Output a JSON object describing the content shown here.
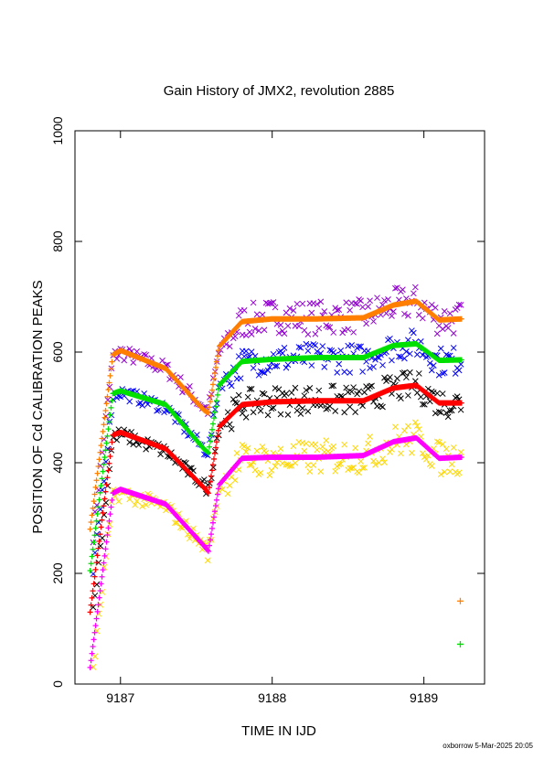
{
  "chart_data": {
    "type": "scatter",
    "title": "Gain History of JMX2, revolution 2885",
    "xlabel": "TIME IN IJD",
    "ylabel": "POSITION OF Cd CALIBRATION PEAKS",
    "xlim": [
      9186.7,
      9189.4
    ],
    "ylim": [
      0,
      1000
    ],
    "xticks": [
      "9187",
      "9188",
      "9189"
    ],
    "xtick_values": [
      9187,
      9188,
      9189
    ],
    "yticks": [
      "0",
      "200",
      "400",
      "600",
      "800",
      "1000"
    ],
    "ytick_values": [
      0,
      200,
      400,
      600,
      800,
      1000
    ],
    "grid": false,
    "footer": "oxborrow  5-Mar-2025 20:05",
    "series": [
      {
        "color": "#9400d3",
        "marker": "x",
        "scatter": 14,
        "points": [
          [
            9186.82,
            270
          ],
          [
            9186.95,
            590
          ],
          [
            9187.0,
            600
          ],
          [
            9187.3,
            570
          ],
          [
            9187.55,
            500
          ],
          [
            9187.58,
            495
          ],
          [
            9187.65,
            600
          ],
          [
            9187.8,
            655
          ],
          [
            9188.0,
            665
          ],
          [
            9188.3,
            662
          ],
          [
            9188.6,
            665
          ],
          [
            9188.8,
            685
          ],
          [
            9188.95,
            690
          ],
          [
            9189.1,
            660
          ],
          [
            9189.25,
            660
          ]
        ]
      },
      {
        "color": "#ff7f00",
        "marker": "+",
        "scatter": 0,
        "points": [
          [
            9186.8,
            280
          ],
          [
            9186.95,
            595
          ],
          [
            9187.0,
            603
          ],
          [
            9187.3,
            570
          ],
          [
            9187.55,
            495
          ],
          [
            9187.58,
            490
          ],
          [
            9187.65,
            610
          ],
          [
            9187.8,
            655
          ],
          [
            9188.0,
            660
          ],
          [
            9188.3,
            660
          ],
          [
            9188.6,
            662
          ],
          [
            9188.8,
            685
          ],
          [
            9188.95,
            692
          ],
          [
            9189.1,
            658
          ],
          [
            9189.25,
            660
          ]
        ]
      },
      {
        "color": "#0000ff",
        "marker": "x",
        "scatter": 12,
        "points": [
          [
            9186.82,
            200
          ],
          [
            9186.95,
            520
          ],
          [
            9187.0,
            528
          ],
          [
            9187.3,
            500
          ],
          [
            9187.55,
            425
          ],
          [
            9187.58,
            420
          ],
          [
            9187.65,
            540
          ],
          [
            9187.8,
            580
          ],
          [
            9188.0,
            588
          ],
          [
            9188.3,
            590
          ],
          [
            9188.6,
            588
          ],
          [
            9188.8,
            610
          ],
          [
            9188.95,
            615
          ],
          [
            9189.1,
            583
          ],
          [
            9189.25,
            585
          ]
        ]
      },
      {
        "color": "#00e000",
        "marker": "+",
        "scatter": 0,
        "points": [
          [
            9186.8,
            205
          ],
          [
            9186.95,
            525
          ],
          [
            9187.0,
            530
          ],
          [
            9187.3,
            505
          ],
          [
            9187.55,
            425
          ],
          [
            9187.58,
            418
          ],
          [
            9187.65,
            540
          ],
          [
            9187.8,
            583
          ],
          [
            9188.0,
            587
          ],
          [
            9188.3,
            590
          ],
          [
            9188.6,
            590
          ],
          [
            9188.8,
            612
          ],
          [
            9188.95,
            615
          ],
          [
            9189.1,
            585
          ],
          [
            9189.25,
            586
          ]
        ]
      },
      {
        "color": "#000000",
        "marker": "x",
        "scatter": 12,
        "points": [
          [
            9186.82,
            130
          ],
          [
            9186.95,
            445
          ],
          [
            9187.0,
            452
          ],
          [
            9187.3,
            420
          ],
          [
            9187.55,
            360
          ],
          [
            9187.58,
            350
          ],
          [
            9187.65,
            465
          ],
          [
            9187.8,
            505
          ],
          [
            9188.0,
            512
          ],
          [
            9188.3,
            515
          ],
          [
            9188.6,
            512
          ],
          [
            9188.8,
            535
          ],
          [
            9188.95,
            540
          ],
          [
            9189.1,
            508
          ],
          [
            9189.25,
            508
          ]
        ]
      },
      {
        "color": "#ff0000",
        "marker": "+",
        "scatter": 0,
        "points": [
          [
            9186.8,
            130
          ],
          [
            9186.95,
            450
          ],
          [
            9187.0,
            455
          ],
          [
            9187.3,
            425
          ],
          [
            9187.55,
            355
          ],
          [
            9187.58,
            345
          ],
          [
            9187.65,
            465
          ],
          [
            9187.8,
            505
          ],
          [
            9188.0,
            510
          ],
          [
            9188.3,
            512
          ],
          [
            9188.6,
            512
          ],
          [
            9188.8,
            535
          ],
          [
            9188.95,
            540
          ],
          [
            9189.1,
            508
          ],
          [
            9189.25,
            508
          ]
        ]
      },
      {
        "color": "#ffd700",
        "marker": "x",
        "scatter": 14,
        "points": [
          [
            9186.82,
            30
          ],
          [
            9186.95,
            340
          ],
          [
            9187.0,
            345
          ],
          [
            9187.3,
            320
          ],
          [
            9187.55,
            250
          ],
          [
            9187.58,
            235
          ],
          [
            9187.65,
            355
          ],
          [
            9187.8,
            405
          ],
          [
            9188.0,
            405
          ],
          [
            9188.3,
            410
          ],
          [
            9188.6,
            412
          ],
          [
            9188.8,
            438
          ],
          [
            9188.95,
            445
          ],
          [
            9189.1,
            408
          ],
          [
            9189.25,
            408
          ]
        ]
      },
      {
        "color": "#ff00ff",
        "marker": "+",
        "scatter": 0,
        "points": [
          [
            9186.8,
            30
          ],
          [
            9186.95,
            345
          ],
          [
            9187.0,
            352
          ],
          [
            9187.3,
            325
          ],
          [
            9187.55,
            250
          ],
          [
            9187.58,
            240
          ],
          [
            9187.65,
            360
          ],
          [
            9187.8,
            408
          ],
          [
            9188.0,
            410
          ],
          [
            9188.3,
            410
          ],
          [
            9188.6,
            413
          ],
          [
            9188.8,
            438
          ],
          [
            9188.95,
            445
          ],
          [
            9189.1,
            408
          ],
          [
            9189.25,
            410
          ]
        ]
      }
    ],
    "outliers": [
      {
        "color": "#ff7f00",
        "marker": "+",
        "x": 9189.24,
        "y": 150
      },
      {
        "color": "#00e000",
        "marker": "+",
        "x": 9189.24,
        "y": 72
      }
    ]
  }
}
